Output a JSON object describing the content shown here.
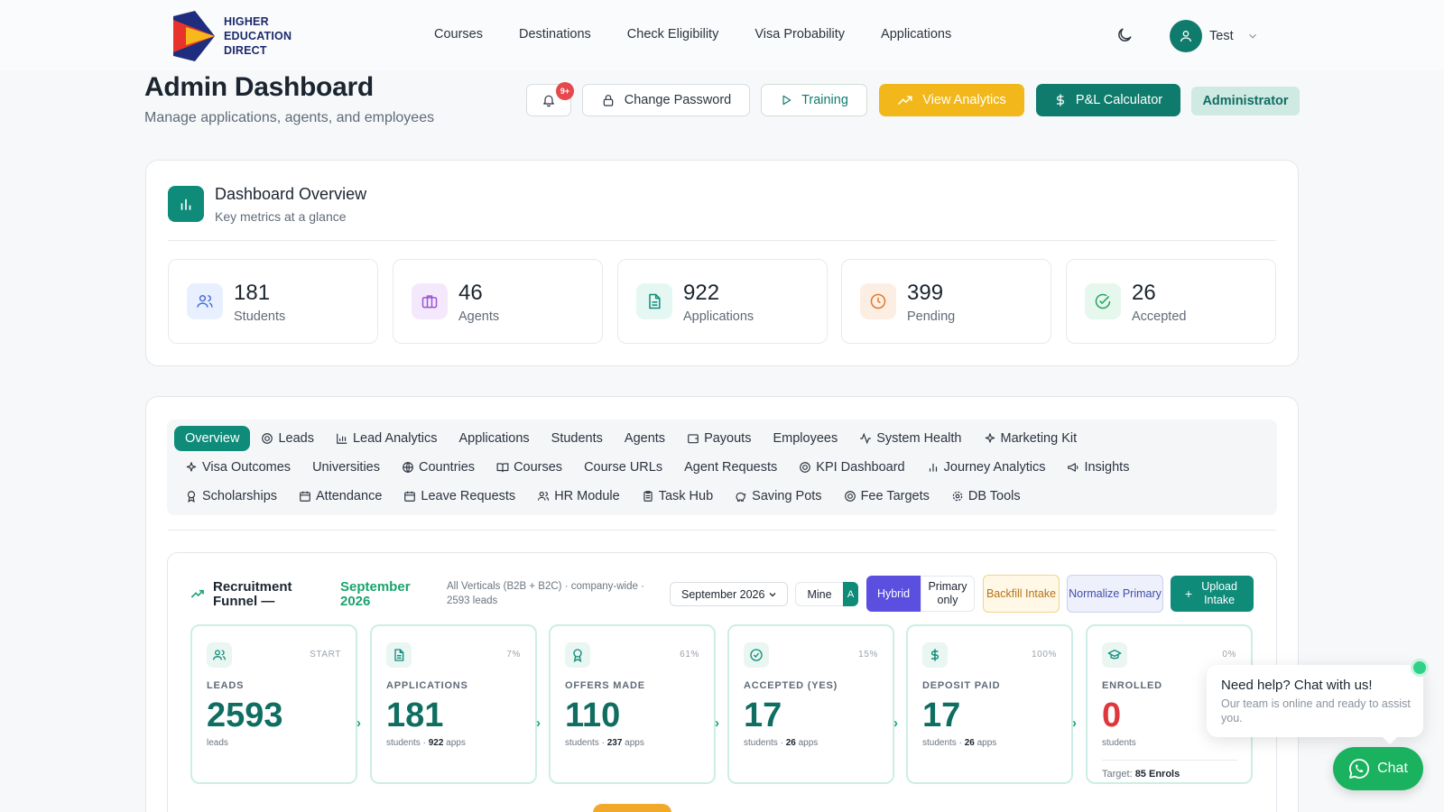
{
  "brand": {
    "line1": "HIGHER",
    "line2": "EDUCATION",
    "line3": "DIRECT"
  },
  "nav": [
    "Courses",
    "Destinations",
    "Check Eligibility",
    "Visa Probability",
    "Applications"
  ],
  "user": {
    "name": "Test"
  },
  "page": {
    "title": "Admin Dashboard",
    "subtitle": "Manage applications, agents, and employees"
  },
  "actions": {
    "notifications_badge": "9+",
    "change_password": "Change Password",
    "training": "Training",
    "view_analytics": "View Analytics",
    "pl_calculator": "P&L Calculator",
    "role": "Administrator"
  },
  "overview": {
    "title": "Dashboard Overview",
    "subtitle": "Key metrics at a glance",
    "stats": [
      {
        "value": "181",
        "label": "Students",
        "icon": "users-icon",
        "color": "#e8efff"
      },
      {
        "value": "46",
        "label": "Agents",
        "icon": "briefcase-icon",
        "color": "#f4e9fc"
      },
      {
        "value": "922",
        "label": "Applications",
        "icon": "document-icon",
        "color": "#e5f7f2"
      },
      {
        "value": "399",
        "label": "Pending",
        "icon": "clock-icon",
        "color": "#fdeee4"
      },
      {
        "value": "26",
        "label": "Accepted",
        "icon": "check-circle-icon",
        "color": "#e6f7ee"
      }
    ]
  },
  "tabs": {
    "row1": [
      "Overview",
      "Leads",
      "Lead Analytics",
      "Applications",
      "Students",
      "Agents",
      "Payouts",
      "Employees",
      "System Health",
      "Marketing Kit"
    ],
    "row2": [
      "Visa Outcomes",
      "Universities",
      "Countries",
      "Courses",
      "Course URLs",
      "Agent Requests",
      "KPI Dashboard",
      "Journey Analytics",
      "Insights"
    ],
    "row3": [
      "Scholarships",
      "Attendance",
      "Leave Requests",
      "HR Module",
      "Task Hub",
      "Saving Pots",
      "Fee Targets",
      "DB Tools"
    ]
  },
  "funnel": {
    "title": "Recruitment Funnel —",
    "month": "September 2026",
    "description": "All Verticals (B2B + B2C) · company-wide · 2593 leads",
    "select_value": "September 2026",
    "seg_mine": "Mine",
    "seg_all_partial": "A",
    "seg_hybrid": "Hybrid",
    "seg_primary": "Primary only",
    "backfill": "Backfill Intake",
    "normalize": "Normalize Primary",
    "upload": "Upload Intake",
    "stages": [
      {
        "label": "LEADS",
        "pct": "START",
        "value": "2593",
        "sub1": "leads",
        "sub2": "",
        "sub3": ""
      },
      {
        "label": "APPLICATIONS",
        "pct": "7%",
        "value": "181",
        "sub1": "students · ",
        "sub2": "922",
        "sub3": " apps"
      },
      {
        "label": "OFFERS MADE",
        "pct": "61%",
        "value": "110",
        "sub1": "students · ",
        "sub2": "237",
        "sub3": " apps"
      },
      {
        "label": "ACCEPTED (YES)",
        "pct": "15%",
        "value": "17",
        "sub1": "students · ",
        "sub2": "26",
        "sub3": " apps"
      },
      {
        "label": "DEPOSIT PAID",
        "pct": "100%",
        "value": "17",
        "sub1": "students · ",
        "sub2": "26",
        "sub3": " apps"
      },
      {
        "label": "ENROLLED",
        "pct": "0%",
        "value": "0",
        "sub1": "students",
        "sub2": "",
        "sub3": ""
      }
    ],
    "target_label": "Target: ",
    "target_value": "85 Enrols"
  },
  "chat": {
    "title": "Need help? Chat with us!",
    "subtitle": "Our team is online and ready to assist you.",
    "button": "Chat"
  }
}
